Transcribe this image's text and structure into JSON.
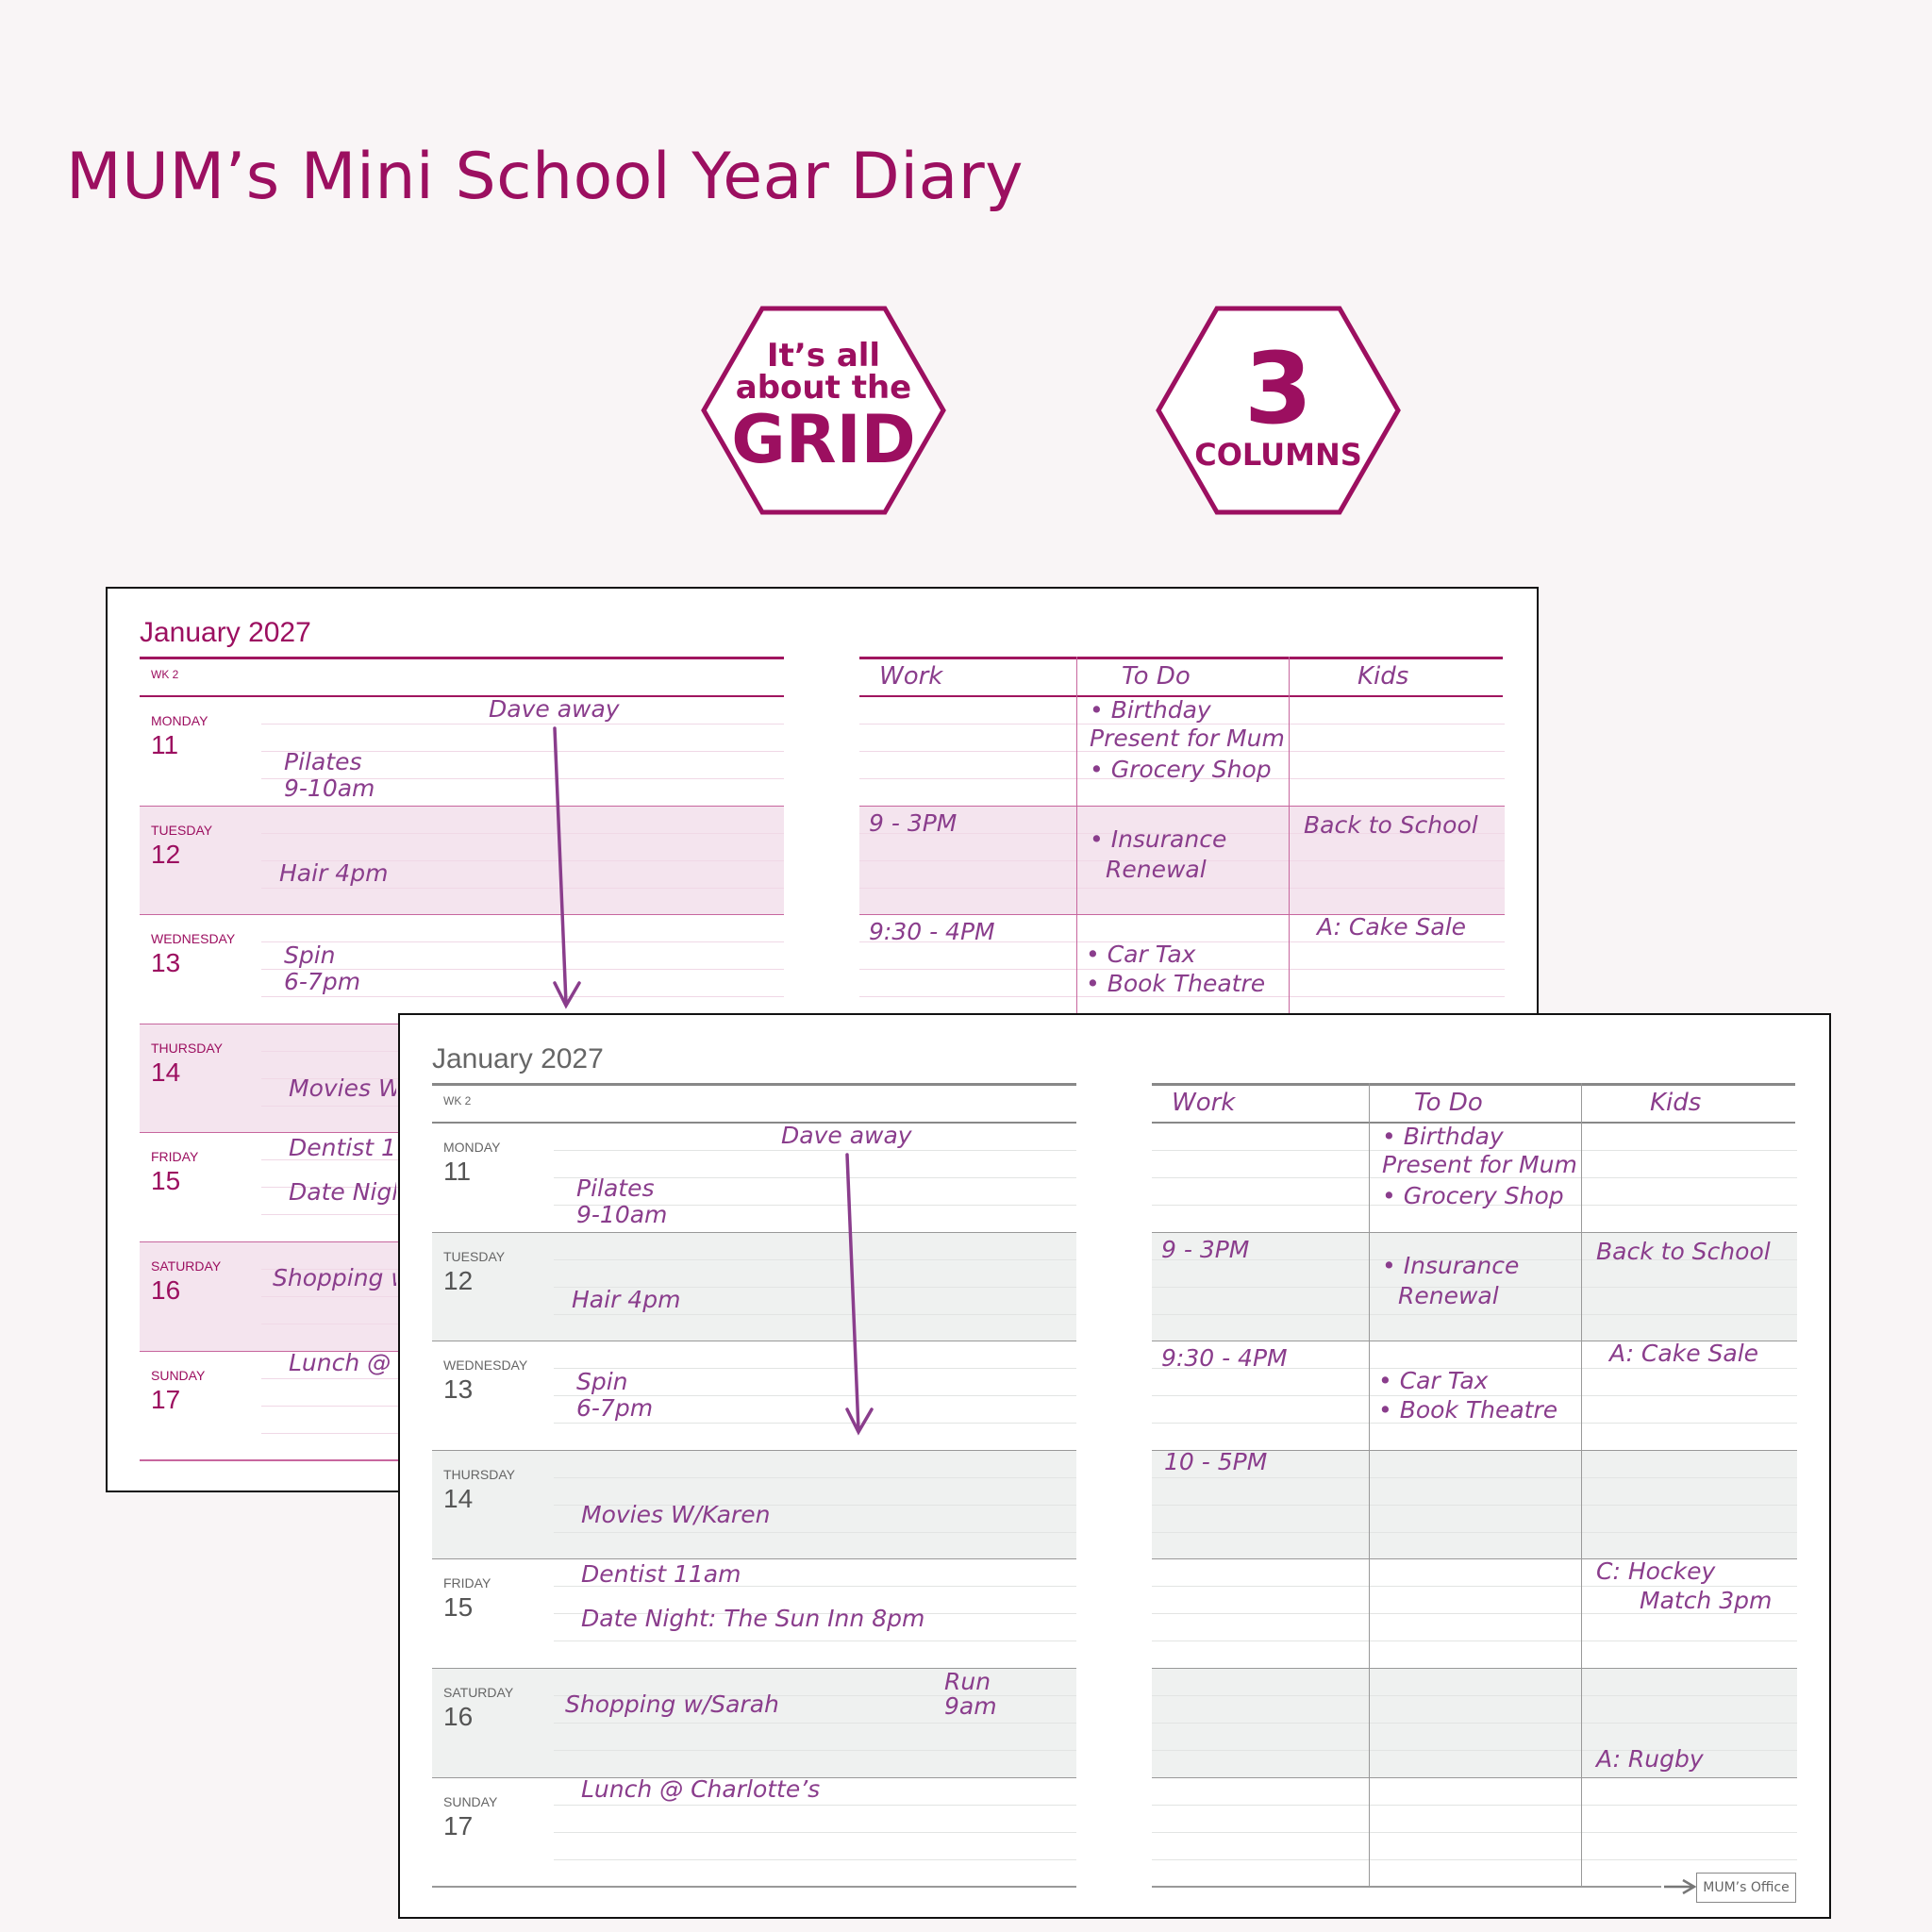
{
  "title": "MUM’s Mini School Year Diary",
  "badges": {
    "grid": {
      "line1": "It’s all",
      "line2": "about the",
      "line3": "GRID"
    },
    "columns": {
      "number": "3",
      "label": "COLUMNS"
    }
  },
  "colors": {
    "brand": "#9c0f60",
    "handwriting": "#8a3d8c",
    "pink_shade": "#f4e4ee",
    "grey_shade": "#eff1f0"
  },
  "diary": {
    "month": "January 2027",
    "week": "WK 2",
    "columns": [
      "Work",
      "To Do",
      "Kids"
    ],
    "days": [
      {
        "name": "MONDAY",
        "num": "11"
      },
      {
        "name": "TUESDAY",
        "num": "12"
      },
      {
        "name": "WEDNESDAY",
        "num": "13"
      },
      {
        "name": "THURSDAY",
        "num": "14"
      },
      {
        "name": "FRIDAY",
        "num": "15"
      },
      {
        "name": "SATURDAY",
        "num": "16"
      },
      {
        "name": "SUNDAY",
        "num": "17"
      }
    ],
    "entries": [
      "Dave away",
      "Pilates",
      "9-10am",
      "Hair 4pm",
      "Spin",
      "6-7pm",
      "Movies W/Karen",
      "Dentist 11am",
      "Date Night: The Sun Inn 8pm",
      "Shopping w/Sarah",
      "Run",
      "9am",
      "Lunch @ Charlotte’s",
      "• Birthday",
      "Present for Mum",
      "• Grocery Shop",
      "9 - 3PM",
      "• Insurance",
      "Renewal",
      "Back to School",
      "9:30 - 4PM",
      "A: Cake Sale",
      "• Car Tax",
      "•  Book Theatre",
      "10 - 5PM",
      "C: Hockey",
      "Match 3pm",
      "A: Rugby"
    ],
    "footer_tag": "MUM’s Office"
  }
}
